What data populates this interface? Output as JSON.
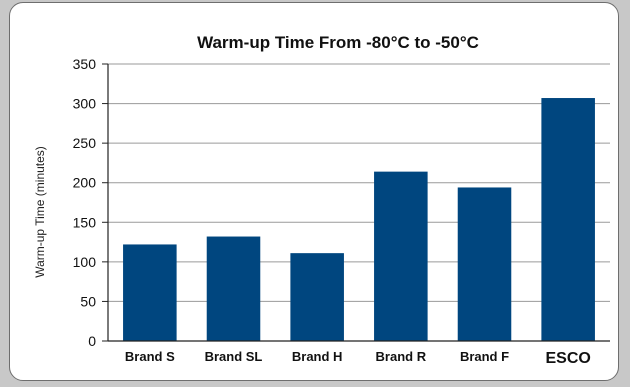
{
  "chart_data": {
    "type": "bar",
    "title": "Warm-up Time From -80°C to -50°C",
    "ylabel": "Warm-up Time (minutes)",
    "xlabel": "",
    "categories": [
      "Brand S",
      "Brand SL",
      "Brand H",
      "Brand R",
      "Brand F",
      "ESCO"
    ],
    "values": [
      122,
      132,
      111,
      214,
      194,
      307
    ],
    "ylim": [
      0,
      350
    ],
    "yticks": [
      0,
      50,
      100,
      150,
      200,
      250,
      300,
      350
    ],
    "grid": true,
    "legend": "none",
    "bar_color": "#00467f",
    "grid_color": "#9a9a9a"
  }
}
